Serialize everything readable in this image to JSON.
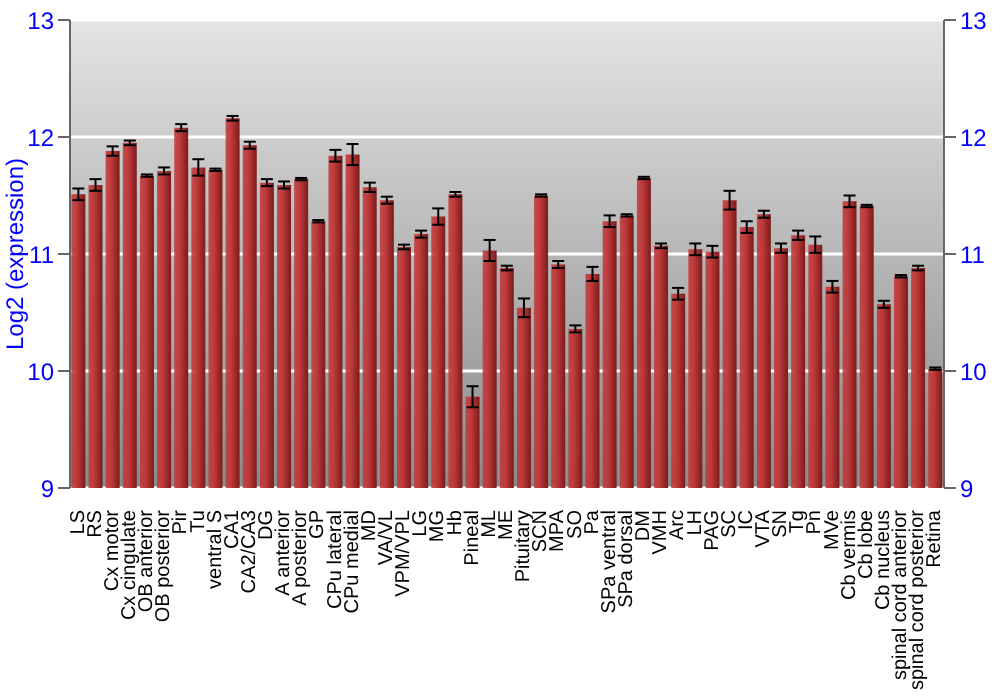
{
  "chart_data": {
    "type": "bar",
    "ylabel": "Log2 (expression)",
    "categories": [
      "LS",
      "RS",
      "Cx motor",
      "Cx cingulate",
      "OB anterior",
      "OB posterior",
      "Pir",
      "Tu",
      "ventral S",
      "CA1",
      "CA2/CA3",
      "DG",
      "A anterior",
      "A posterior",
      "GP",
      "CPu lateral",
      "CPu medial",
      "MD",
      "VA/VL",
      "VPM/VPL",
      "LG",
      "MG",
      "Hb",
      "Pineal",
      "ML",
      "ME",
      "Pituitary",
      "SCN",
      "MPA",
      "SO",
      "Pa",
      "SPa ventral",
      "SPa dorsal",
      "DM",
      "VMH",
      "Arc",
      "LH",
      "PAG",
      "SC",
      "IC",
      "VTA",
      "SN",
      "Tg",
      "Pn",
      "MVe",
      "Cb vermis",
      "Cb lobe",
      "Cb nucleus",
      "spinal cord anterior",
      "spinal cord posterior",
      "Retina"
    ],
    "values": [
      11.51,
      11.59,
      11.88,
      11.95,
      11.67,
      11.71,
      12.08,
      11.74,
      11.72,
      12.16,
      11.93,
      11.61,
      11.59,
      11.64,
      11.28,
      11.84,
      11.85,
      11.57,
      11.46,
      11.06,
      11.17,
      11.32,
      11.51,
      9.78,
      11.03,
      10.88,
      10.54,
      11.5,
      10.91,
      10.36,
      10.83,
      11.28,
      11.33,
      11.65,
      11.07,
      10.66,
      11.04,
      11.02,
      11.46,
      11.23,
      11.34,
      11.05,
      11.16,
      11.08,
      10.72,
      11.45,
      11.41,
      10.57,
      10.81,
      10.88,
      10.02
    ],
    "errors": [
      0.05,
      0.05,
      0.04,
      0.02,
      0.01,
      0.03,
      0.03,
      0.07,
      0.01,
      0.02,
      0.03,
      0.03,
      0.03,
      0.01,
      0.01,
      0.05,
      0.09,
      0.04,
      0.03,
      0.02,
      0.03,
      0.07,
      0.02,
      0.09,
      0.09,
      0.02,
      0.08,
      0.01,
      0.03,
      0.03,
      0.06,
      0.05,
      0.01,
      0.01,
      0.02,
      0.05,
      0.05,
      0.05,
      0.08,
      0.05,
      0.03,
      0.04,
      0.04,
      0.07,
      0.05,
      0.05,
      0.01,
      0.03,
      0.01,
      0.02,
      0.01
    ],
    "color": "#c0393a",
    "ylim": [
      9,
      13
    ],
    "yticks": [
      9,
      10,
      11,
      12,
      13
    ],
    "y2lim": [
      9,
      13
    ],
    "y2ticks": [
      9,
      10,
      11,
      12,
      13
    ],
    "grid": "y",
    "legend": false
  }
}
